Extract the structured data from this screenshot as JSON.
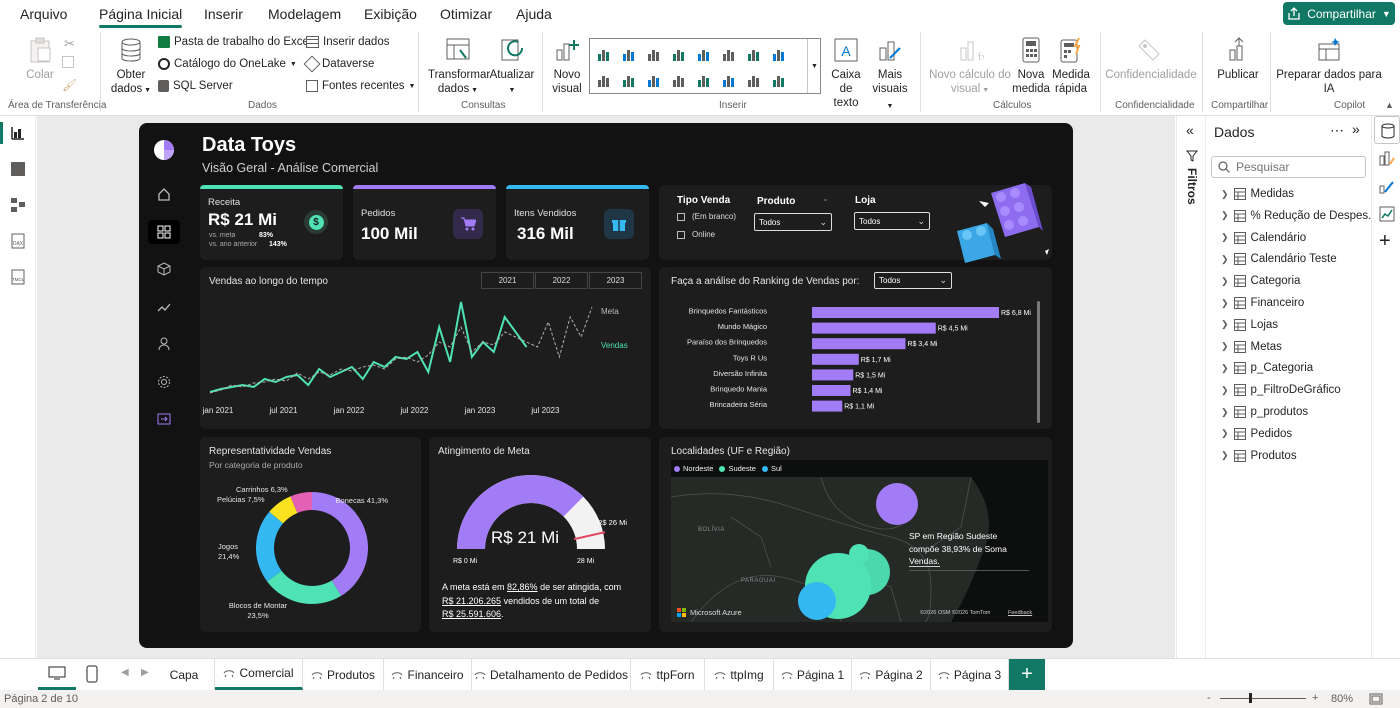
{
  "menu": {
    "tabs": [
      "Arquivo",
      "Página Inicial",
      "Inserir",
      "Modelagem",
      "Exibição",
      "Otimizar",
      "Ajuda"
    ],
    "share": "Compartilhar"
  },
  "ribbon": {
    "clipboard": {
      "paste": "Colar",
      "group": "Área de Transferência"
    },
    "data": {
      "get_data_1": "Obter",
      "get_data_2": "dados",
      "excel": "Pasta de trabalho do Excel",
      "onelake": "Catálogo do OneLake",
      "sql": "SQL Server",
      "insert_data": "Inserir dados",
      "dataverse": "Dataverse",
      "recent": "Fontes recentes",
      "group": "Dados"
    },
    "queries": {
      "transform_1": "Transformar",
      "transform_2": "dados",
      "refresh": "Atualizar",
      "group": "Consultas"
    },
    "insert": {
      "new_visual_1": "Novo",
      "new_visual_2": "visual",
      "textbox_1": "Caixa de",
      "textbox_2": "texto",
      "more_1": "Mais",
      "more_2": "visuais",
      "group": "Inserir"
    },
    "calc": {
      "new_calc_1": "Novo cálculo do",
      "new_calc_2": "visual",
      "new_measure_1": "Nova",
      "new_measure_2": "medida",
      "quick_1": "Medida",
      "quick_2": "rápida",
      "group": "Cálculos"
    },
    "sensitivity": {
      "label": "Confidencialidade",
      "group": "Confidencialidade"
    },
    "share": {
      "publish": "Publicar",
      "group": "Compartilhar"
    },
    "copilot": {
      "prep_1": "Preparar dados para",
      "prep_2": "IA",
      "group": "Copilot"
    }
  },
  "report": {
    "title": "Data Toys",
    "subtitle": "Visão Geral - Análise Comercial",
    "kpis": {
      "receita_label": "Receita",
      "receita_value": "R$ 21 Mi",
      "vs_meta_label": "vs. meta",
      "vs_meta_value": "83%",
      "vs_ano_label": "vs. ano anterior",
      "vs_ano_value": "143%",
      "pedidos_label": "Pedidos",
      "pedidos_value": "100 Mil",
      "itens_label": "Itens Vendidos",
      "itens_value": "316 Mil"
    },
    "filters": {
      "tipo_venda": "Tipo Venda",
      "opt_blank": "(Em branco)",
      "opt_online": "Online",
      "produto": "Produto",
      "produto_val": "Todos",
      "loja": "Loja",
      "loja_val": "Todos"
    },
    "sales_time": {
      "title": "Vendas ao longo do tempo",
      "years": [
        "2021",
        "2022",
        "2023"
      ],
      "legend_meta": "Meta",
      "legend_vendas": "Vendas",
      "x_ticks": [
        "jan 2021",
        "jul 2021",
        "jan 2022",
        "jul 2022",
        "jan 2023",
        "jul 2023"
      ]
    },
    "ranking": {
      "title": "Faça a análise do Ranking de Vendas por:",
      "select": "Todos"
    },
    "representatividade": {
      "title": "Representatividade Vendas",
      "subtitle": "Por categoria de produto"
    },
    "meta": {
      "title": "Atingimento de Meta",
      "center": "R$ 21 Mi",
      "target": "R$ 26 Mi",
      "min": "R$ 0 Mi",
      "max": "28 Mi",
      "text_1": "A meta está em ",
      "text_pct": "82,86%",
      "text_2": " de ser atingida, com",
      "text_3": "R$ 21.206.265",
      "text_4": " vendidos de um total de",
      "text_5": "R$ 25.591.606",
      "text_6": "."
    },
    "map": {
      "title": "Localidades (UF e Região)",
      "legend": [
        "Nordeste",
        "Sudeste",
        "Sul"
      ],
      "legend_colors": [
        "#a27cf6",
        "#4ee2b4",
        "#34b8f2"
      ],
      "bolivia": "BOLÍVIA",
      "paraguai": "PARAGUAI",
      "annotation_1": "SP em Região Sudeste",
      "annotation_2": "compõe 38,93% de Soma",
      "annotation_3": "Vendas.",
      "azure": "Microsoft Azure",
      "copyright": "©2026 OSM  ©2026 TomTom",
      "feedback": "Feedback"
    }
  },
  "chart_data": [
    {
      "type": "line",
      "title": "Vendas ao longo do tempo",
      "x": [
        "jan 2021",
        "fev 2021",
        "mar 2021",
        "abr 2021",
        "mai 2021",
        "jun 2021",
        "jul 2021",
        "ago 2021",
        "set 2021",
        "out 2021",
        "nov 2021",
        "dez 2021",
        "jan 2022",
        "fev 2022",
        "mar 2022",
        "abr 2022",
        "mai 2022",
        "jun 2022",
        "jul 2022",
        "ago 2022",
        "set 2022",
        "out 2022",
        "nov 2022",
        "dez 2022",
        "jan 2023",
        "fev 2023",
        "mar 2023",
        "abr 2023",
        "mai 2023",
        "jun 2023",
        "jul 2023",
        "ago 2023",
        "set 2023",
        "out 2023",
        "nov 2023",
        "dez 2023"
      ],
      "series": [
        {
          "name": "Vendas",
          "values": [
            0.05,
            0.08,
            0.1,
            0.12,
            0.1,
            0.18,
            0.15,
            0.2,
            0.22,
            0.12,
            0.28,
            0.2,
            0.25,
            0.3,
            0.18,
            0.35,
            0.3,
            0.4,
            0.38,
            0.45,
            0.25,
            0.7,
            0.35,
            0.95,
            0.4,
            0.55,
            0.45,
            0.8,
            0.65,
            0.5,
            null,
            null,
            null,
            null,
            null,
            null
          ],
          "color": "#4ee2b4"
        },
        {
          "name": "Meta",
          "values": [
            0.04,
            0.07,
            0.12,
            0.1,
            0.14,
            0.15,
            0.18,
            0.16,
            0.24,
            0.18,
            0.25,
            0.22,
            0.28,
            0.26,
            0.3,
            0.32,
            0.28,
            0.38,
            0.4,
            0.35,
            0.42,
            0.55,
            0.5,
            0.7,
            0.45,
            0.55,
            0.52,
            0.65,
            0.6,
            0.55,
            0.5,
            0.75,
            0.4,
            0.8,
            0.6,
            0.9
          ],
          "color": "#b0b0b0"
        }
      ]
    },
    {
      "type": "bar",
      "title": "Faça a análise do Ranking de Vendas por:",
      "categories": [
        "Brinquedos Fantásticos",
        "Mundo Mágico",
        "Paraíso dos Brinquedos",
        "Toys R Us",
        "Diversão Infinita",
        "Brinquedo Mania",
        "Brincadeira Séria"
      ],
      "values": [
        6.8,
        4.5,
        3.4,
        1.7,
        1.5,
        1.4,
        1.1
      ],
      "labels": [
        "R$ 6,8 Mi",
        "R$ 4,5 Mi",
        "R$ 3,4 Mi",
        "R$ 1,7 Mi",
        "R$ 1,5 Mi",
        "R$ 1,4 Mi",
        "R$ 1,1 Mi"
      ],
      "color": "#a27cf6"
    },
    {
      "type": "pie",
      "title": "Representatividade Vendas",
      "categories": [
        "Bonecas",
        "Blocos de Montar",
        "Jogos",
        "Pelúcias",
        "Carrinhos"
      ],
      "values": [
        41.3,
        23.5,
        21.4,
        7.5,
        6.3
      ],
      "labels": [
        "Bonecas 41,3%",
        "Blocos de Montar 23,5%",
        "Jogos 21,4%",
        "Pelúcias 7,5%",
        "Carrinhos 6,3%"
      ],
      "colors": [
        "#a27cf6",
        "#4ee2b4",
        "#34b8f2",
        "#f9e11f",
        "#e361b4"
      ]
    },
    {
      "type": "gauge",
      "title": "Atingimento de Meta",
      "value": 21,
      "target": 26,
      "min": 0,
      "max": 28
    }
  ],
  "dados": {
    "title": "Dados",
    "search_placeholder": "Pesquisar",
    "filtros": "Filtros",
    "items": [
      "Medidas",
      "% Redução de Despes...",
      "Calendário",
      "Calendário Teste",
      "Categoria",
      "Financeiro",
      "Lojas",
      "Metas",
      "p_Categoria",
      "p_FiltroDeGráfico",
      "p_produtos",
      "Pedidos",
      "Produtos"
    ]
  },
  "pages": {
    "tabs": [
      "Capa",
      "Comercial",
      "Produtos",
      "Financeiro",
      "Detalhamento de Pedidos",
      "ttpForn",
      "ttpImg",
      "Página 1",
      "Página 2",
      "Página 3"
    ],
    "add": "+"
  },
  "status": {
    "page": "Página 2 de 10",
    "zoom": "80%",
    "zoom_out": "-",
    "zoom_in": "+"
  }
}
